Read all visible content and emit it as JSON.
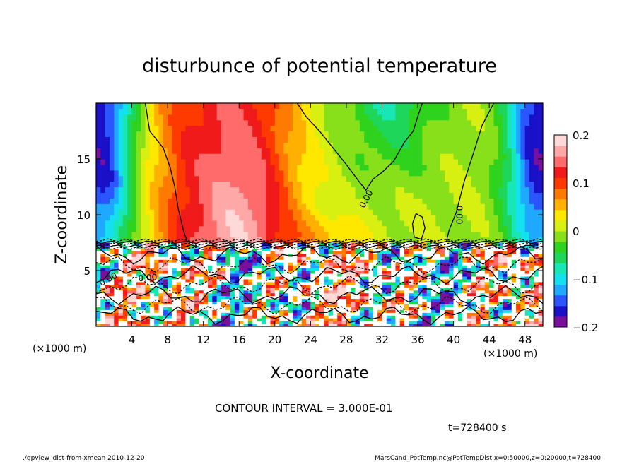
{
  "chart_data": {
    "type": "heatmap",
    "title": "disturbunce of potential temperature",
    "xlabel": "X-coordinate",
    "ylabel": "Z-coordinate",
    "x_unit_left": "(×1000 m)",
    "x_unit_right": "(×1000 m)",
    "z_unit_left": "(×1000 m)",
    "xlim": [
      0,
      50
    ],
    "ylim": [
      0,
      20
    ],
    "xticks": [
      4,
      8,
      12,
      16,
      20,
      24,
      28,
      32,
      36,
      40,
      44,
      48
    ],
    "yticks": [
      5,
      10,
      15
    ],
    "colorbar": {
      "min": -0.2,
      "max": 0.2,
      "ticks": [
        -0.2,
        -0.1,
        0,
        0.1,
        0.2
      ],
      "tick_labels": [
        "−0.2",
        "−0.1",
        "0",
        "0.1",
        "0.2"
      ],
      "colors": [
        "#7a0f9e",
        "#1a10c8",
        "#2a55ff",
        "#1fa8ff",
        "#15e0f0",
        "#18e6b4",
        "#1ed65a",
        "#2fd21c",
        "#88e01a",
        "#d8ef12",
        "#ffe800",
        "#ffb000",
        "#ff7a00",
        "#ff3a00",
        "#f01a1a",
        "#ff6a6a",
        "#ffa8a8",
        "#ffd8d8"
      ]
    },
    "contour_labels": [
      "0.00",
      "0.00",
      "0.00",
      "0.00"
    ],
    "contour_interval_text": "CONTOUR INTERVAL = 3.000E-01",
    "time_text": "t=728400 s"
  },
  "footer": {
    "left": "./gpview_dist-from-xmean  2010-12-20",
    "right": "MarsCand_PotTemp.nc@PotTempDist,x=0:50000,z=0:20000,t=728400"
  }
}
